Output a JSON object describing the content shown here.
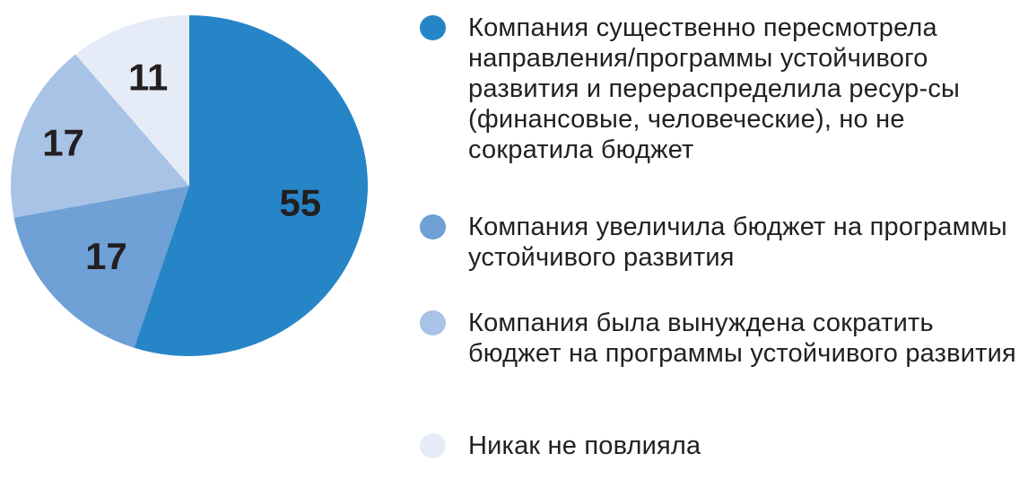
{
  "chart_data": {
    "type": "pie",
    "categories": [
      "Компания существенно пересмотрела направления/программы устойчивого развития и перераспределила ресур-сы (финансовые, человеческие), но не сократила бюджет",
      "Компания увеличила бюджет на программы устойчивого развития",
      "Компания была вынуждена сократить бюджет на программы устойчивого развития",
      "Никак не повлияла"
    ],
    "values": [
      55,
      17,
      17,
      11
    ],
    "labels": [
      "55",
      "17",
      "17",
      "11"
    ],
    "colors": [
      "#2685c7",
      "#6fa0d6",
      "#a8c3e6",
      "#e6ecf7"
    ],
    "legend_position": "right"
  }
}
